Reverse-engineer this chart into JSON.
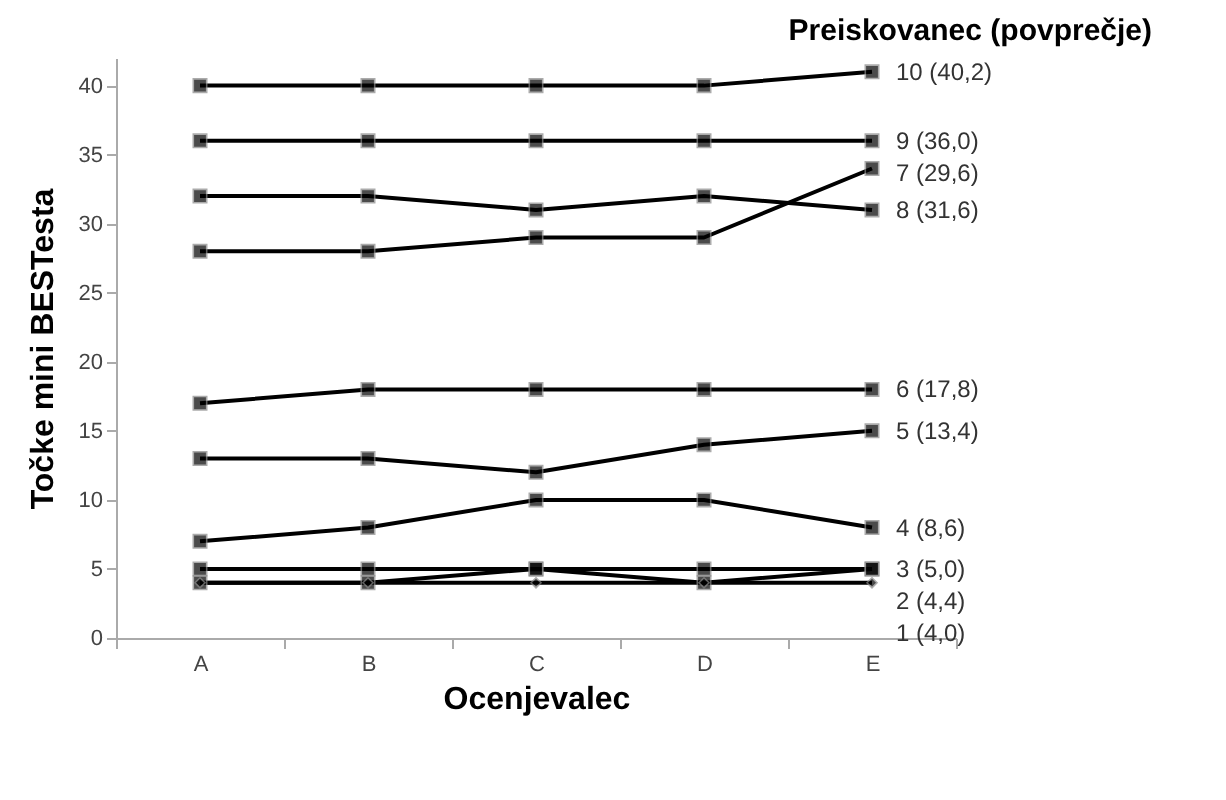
{
  "chart_data": {
    "type": "line",
    "legend_title": "Preiskovanec (povprečje)",
    "xlabel": "Ocenjevalec",
    "ylabel": "Točke mini BESTesta",
    "categories": [
      "A",
      "B",
      "C",
      "D",
      "E"
    ],
    "ylim": [
      0,
      42
    ],
    "yticks": [
      0,
      5,
      10,
      15,
      20,
      25,
      30,
      35,
      40
    ],
    "grid": false,
    "legend": false,
    "marker": "square",
    "line_style": "solid",
    "series": [
      {
        "name": "10 (40,2)",
        "color": "#000000",
        "values": [
          40,
          40,
          40,
          40,
          41
        ]
      },
      {
        "name": "9 (36,0)",
        "color": "#000000",
        "values": [
          36,
          36,
          36,
          36,
          36
        ]
      },
      {
        "name": "8 (31,6)",
        "color": "#000000",
        "values": [
          32,
          32,
          31,
          32,
          31
        ]
      },
      {
        "name": "7 (29,6)",
        "color": "#000000",
        "values": [
          28,
          28,
          29,
          29,
          34
        ]
      },
      {
        "name": "6 (17,8)",
        "color": "#000000",
        "values": [
          17,
          18,
          18,
          18,
          18
        ]
      },
      {
        "name": "5 (13,4)",
        "color": "#000000",
        "values": [
          13,
          13,
          12,
          14,
          15
        ]
      },
      {
        "name": "4 (8,6)",
        "color": "#000000",
        "values": [
          7,
          8,
          10,
          10,
          8
        ]
      },
      {
        "name": "3 (5,0)",
        "color": "#000000",
        "values": [
          5,
          5,
          5,
          5,
          5
        ]
      },
      {
        "name": "2 (4,4)",
        "color": "#000000",
        "values": [
          4,
          4,
          5,
          4,
          5
        ]
      },
      {
        "name": "1 (4,0)",
        "color": "#000000",
        "values": [
          4,
          4,
          4,
          4,
          4
        ],
        "marker": "diamond"
      }
    ]
  }
}
